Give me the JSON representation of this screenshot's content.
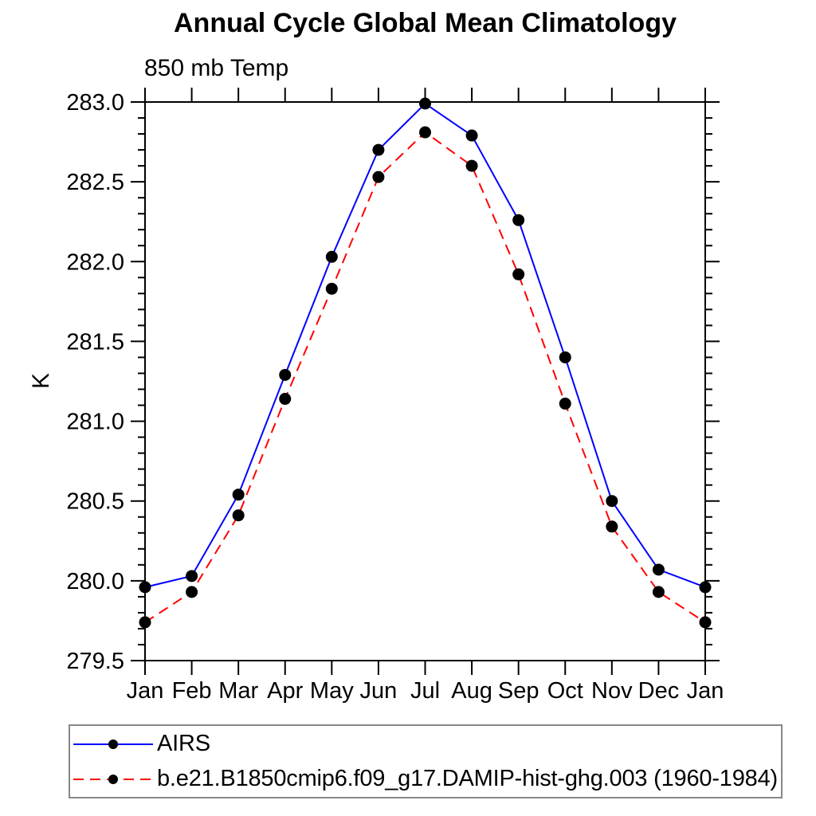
{
  "figure": {
    "title": "Annual Cycle Global Mean Climatology",
    "subtitle": "850 mb Temp",
    "ylabel": "K"
  },
  "chart_data": {
    "type": "line",
    "title": "Annual Cycle Global Mean Climatology",
    "subtitle": "850 mb Temp",
    "xlabel": "",
    "ylabel": "K",
    "categories": [
      "Jan",
      "Feb",
      "Mar",
      "Apr",
      "May",
      "Jun",
      "Jul",
      "Aug",
      "Sep",
      "Oct",
      "Nov",
      "Dec",
      "Jan"
    ],
    "series": [
      {
        "name": "AIRS",
        "color": "#0000ff",
        "line_style": "solid",
        "marker": "filled-circle",
        "marker_color": "#000000",
        "values": [
          279.96,
          280.03,
          280.54,
          281.29,
          282.03,
          282.7,
          282.99,
          282.79,
          282.26,
          281.4,
          280.5,
          280.07,
          279.96
        ]
      },
      {
        "name": "b.e21.B1850cmip6.f09_g17.DAMIP-hist-ghg.003 (1960-1984)",
        "color": "#ff0000",
        "line_style": "dashed",
        "marker": "filled-circle",
        "marker_color": "#000000",
        "values": [
          279.74,
          279.93,
          280.41,
          281.14,
          281.83,
          282.53,
          282.81,
          282.6,
          281.92,
          281.11,
          280.34,
          279.93,
          279.74
        ]
      }
    ],
    "ylim": [
      279.5,
      283.0
    ],
    "y_major_step": 0.5,
    "y_minor_step": 0.1,
    "grid": false,
    "tick_direction": "out",
    "axis_color": "#000000",
    "legend_position": "bottom-left"
  }
}
